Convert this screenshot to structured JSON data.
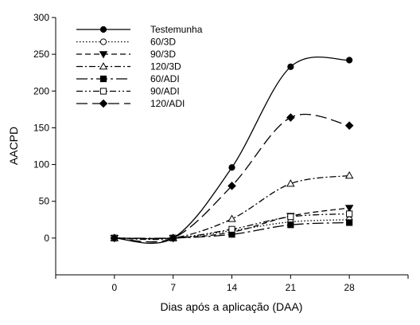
{
  "chart_data": {
    "type": "line",
    "title": "",
    "xlabel": "Dias após a aplicação (DAA)",
    "ylabel": "AACPD",
    "x": [
      0,
      7,
      14,
      21,
      28
    ],
    "x_ticks": [
      "0",
      "7",
      "14",
      "21",
      "28"
    ],
    "xlim": [
      -7,
      35
    ],
    "ylim": [
      -50,
      300
    ],
    "y_ticks": [
      "0",
      "50",
      "100",
      "150",
      "200",
      "250",
      "300"
    ],
    "legend_position": "top-left",
    "grid": false,
    "series": [
      {
        "name": "Testemunha",
        "values": [
          0,
          0,
          96,
          233,
          242
        ],
        "marker": "circle-filled",
        "dash": "solid"
      },
      {
        "name": "60/3D",
        "values": [
          0,
          0,
          10,
          22,
          25
        ],
        "marker": "circle-open",
        "dash": "dotted"
      },
      {
        "name": "90/3D",
        "values": [
          0,
          0,
          8,
          30,
          41
        ],
        "marker": "triangle-down-filled",
        "dash": "dashed"
      },
      {
        "name": "120/3D",
        "values": [
          0,
          0,
          26,
          74,
          85
        ],
        "marker": "triangle-up-open",
        "dash": "dash-dot"
      },
      {
        "name": "60/ADI",
        "values": [
          0,
          0,
          5,
          18,
          21
        ],
        "marker": "square-filled",
        "dash": "long-dash-dot"
      },
      {
        "name": "90/ADI",
        "values": [
          0,
          0,
          12,
          29,
          33
        ],
        "marker": "square-open",
        "dash": "dash-dot-dot"
      },
      {
        "name": "120/ADI",
        "values": [
          0,
          0,
          71,
          164,
          153
        ],
        "marker": "diamond-filled",
        "dash": "long-dash"
      }
    ]
  }
}
